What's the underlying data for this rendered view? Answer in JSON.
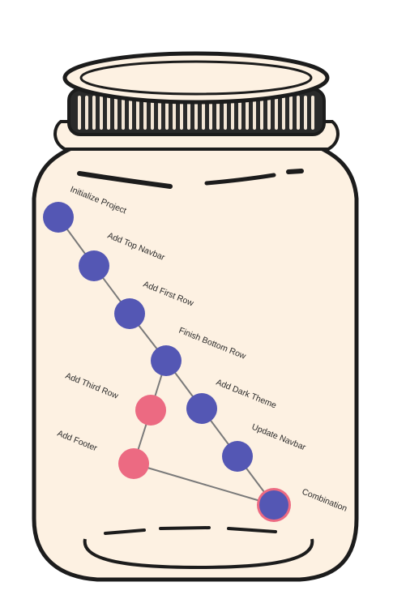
{
  "colors": {
    "jar_fill": "#fdf1e2",
    "outline": "#1c1c1c",
    "main_branch": "#5457b4",
    "feature_branch": "#ec6a82",
    "edge": "#7a7a7a"
  },
  "commits": [
    {
      "id": "c1",
      "label": "Initialize Project",
      "branch": "main"
    },
    {
      "id": "c2",
      "label": "Add Top Navbar",
      "branch": "main"
    },
    {
      "id": "c3",
      "label": "Add First Row",
      "branch": "main"
    },
    {
      "id": "c4",
      "label": "Finish Bottom Row",
      "branch": "main"
    },
    {
      "id": "c5",
      "label": "Add Third Row",
      "branch": "feature"
    },
    {
      "id": "c6",
      "label": "Add Dark Theme",
      "branch": "main"
    },
    {
      "id": "c7",
      "label": "Add Footer",
      "branch": "feature"
    },
    {
      "id": "c8",
      "label": "Update Navbar",
      "branch": "main"
    },
    {
      "id": "c9",
      "label": "Combination",
      "branch": "merge"
    }
  ],
  "edges": [
    [
      "c1",
      "c2"
    ],
    [
      "c2",
      "c3"
    ],
    [
      "c3",
      "c4"
    ],
    [
      "c4",
      "c5"
    ],
    [
      "c4",
      "c6"
    ],
    [
      "c5",
      "c7"
    ],
    [
      "c6",
      "c8"
    ],
    [
      "c8",
      "c9"
    ],
    [
      "c7",
      "c9"
    ]
  ]
}
